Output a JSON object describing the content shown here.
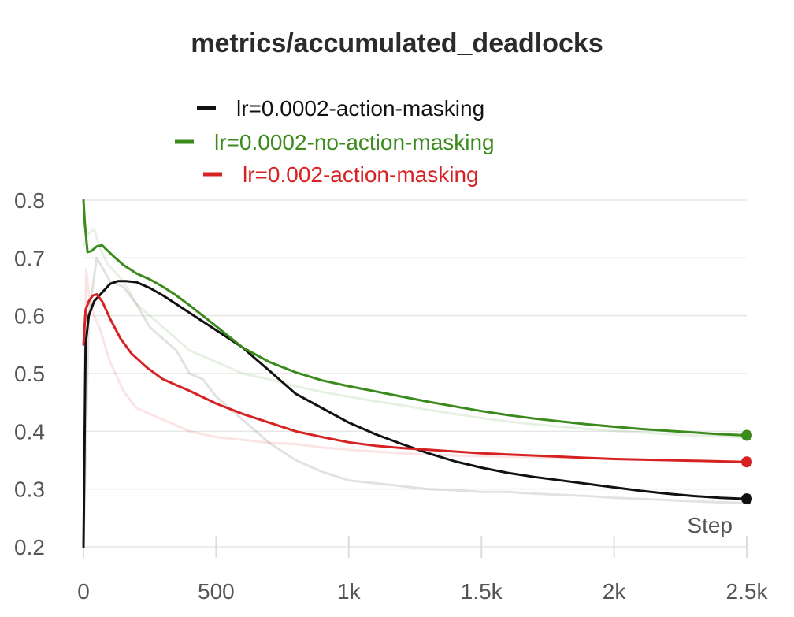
{
  "chart_data": {
    "type": "line",
    "title": "metrics/accumulated_deadlocks",
    "xlabel": "Step",
    "ylabel": "",
    "xlim": [
      0,
      2500
    ],
    "ylim": [
      0.2,
      0.8
    ],
    "x_ticks": [
      0,
      500,
      1000,
      1500,
      2000,
      2500
    ],
    "x_tick_labels": [
      "0",
      "500",
      "1k",
      "1.5k",
      "2k",
      "2.5k"
    ],
    "y_ticks": [
      0.2,
      0.3,
      0.4,
      0.5,
      0.6,
      0.7,
      0.8
    ],
    "y_tick_labels": [
      "0.2",
      "0.3",
      "0.4",
      "0.5",
      "0.6",
      "0.7",
      "0.8"
    ],
    "grid": true,
    "legend_position": "top-center",
    "series": [
      {
        "name": "lr=0.0002-action-masking",
        "color": "#111111",
        "x": [
          0,
          8,
          20,
          40,
          70,
          100,
          130,
          160,
          200,
          250,
          300,
          350,
          400,
          450,
          500,
          550,
          600,
          650,
          700,
          800,
          900,
          1000,
          1100,
          1200,
          1300,
          1400,
          1500,
          1600,
          1700,
          1800,
          1900,
          2000,
          2100,
          2200,
          2300,
          2400,
          2500
        ],
        "values": [
          0.2,
          0.55,
          0.6,
          0.625,
          0.64,
          0.655,
          0.66,
          0.66,
          0.658,
          0.648,
          0.635,
          0.62,
          0.605,
          0.59,
          0.575,
          0.56,
          0.545,
          0.525,
          0.505,
          0.465,
          0.44,
          0.415,
          0.395,
          0.378,
          0.362,
          0.348,
          0.337,
          0.328,
          0.321,
          0.315,
          0.309,
          0.303,
          0.297,
          0.292,
          0.288,
          0.285,
          0.283
        ]
      },
      {
        "name": "lr=0.0002-no-action-masking",
        "color": "#3a8a1c",
        "x": [
          0,
          5,
          15,
          30,
          50,
          70,
          90,
          120,
          150,
          200,
          250,
          300,
          350,
          400,
          450,
          500,
          600,
          700,
          800,
          900,
          1000,
          1100,
          1200,
          1300,
          1400,
          1500,
          1600,
          1700,
          1800,
          1900,
          2000,
          2100,
          2200,
          2300,
          2400,
          2500
        ],
        "values": [
          0.8,
          0.76,
          0.71,
          0.712,
          0.72,
          0.722,
          0.713,
          0.7,
          0.688,
          0.673,
          0.663,
          0.65,
          0.635,
          0.618,
          0.6,
          0.582,
          0.545,
          0.52,
          0.502,
          0.488,
          0.478,
          0.469,
          0.46,
          0.451,
          0.443,
          0.435,
          0.428,
          0.422,
          0.417,
          0.412,
          0.408,
          0.404,
          0.401,
          0.398,
          0.395,
          0.393
        ]
      },
      {
        "name": "lr=0.002-action-masking",
        "color": "#d62222",
        "x": [
          0,
          8,
          20,
          35,
          50,
          70,
          100,
          140,
          180,
          240,
          300,
          350,
          400,
          500,
          600,
          700,
          800,
          900,
          1000,
          1100,
          1200,
          1300,
          1400,
          1500,
          1600,
          1700,
          1800,
          1900,
          2000,
          2100,
          2200,
          2300,
          2400,
          2500
        ],
        "values": [
          0.55,
          0.61,
          0.625,
          0.635,
          0.637,
          0.625,
          0.595,
          0.56,
          0.535,
          0.51,
          0.49,
          0.48,
          0.47,
          0.448,
          0.43,
          0.415,
          0.4,
          0.39,
          0.381,
          0.375,
          0.371,
          0.368,
          0.365,
          0.362,
          0.36,
          0.358,
          0.356,
          0.354,
          0.352,
          0.351,
          0.35,
          0.349,
          0.348,
          0.347
        ]
      }
    ],
    "raw_series": [
      {
        "color": "#111111",
        "x": [
          0,
          20,
          50,
          100,
          150,
          200,
          250,
          300,
          350,
          400,
          450,
          500,
          600,
          700,
          800,
          900,
          1000,
          1100,
          1200,
          1300,
          1400,
          1500,
          1600,
          1700,
          1800,
          1900,
          2000,
          2100,
          2200,
          2300,
          2400,
          2500
        ],
        "values": [
          0.2,
          0.6,
          0.7,
          0.66,
          0.65,
          0.62,
          0.58,
          0.56,
          0.54,
          0.5,
          0.49,
          0.46,
          0.42,
          0.38,
          0.35,
          0.33,
          0.315,
          0.31,
          0.305,
          0.3,
          0.298,
          0.295,
          0.295,
          0.292,
          0.29,
          0.288,
          0.285,
          0.283,
          0.281,
          0.279,
          0.277,
          0.276
        ]
      },
      {
        "color": "#3a8a1c",
        "x": [
          0,
          15,
          40,
          60,
          90,
          150,
          200,
          300,
          400,
          500,
          600,
          700,
          800,
          900,
          1000,
          1100,
          1200,
          1300,
          1400,
          1500,
          1600,
          1700,
          1800,
          1900,
          2000,
          2100,
          2200,
          2300,
          2400,
          2500
        ],
        "values": [
          0.72,
          0.74,
          0.75,
          0.72,
          0.69,
          0.66,
          0.62,
          0.58,
          0.54,
          0.52,
          0.5,
          0.49,
          0.478,
          0.468,
          0.46,
          0.452,
          0.445,
          0.437,
          0.43,
          0.423,
          0.417,
          0.412,
          0.408,
          0.404,
          0.401,
          0.398,
          0.395,
          0.393,
          0.391,
          0.389
        ]
      },
      {
        "color": "#d62222",
        "x": [
          0,
          10,
          25,
          40,
          60,
          100,
          150,
          200,
          250,
          300,
          350,
          400,
          500,
          600,
          700,
          800,
          900,
          1000,
          1100,
          1200,
          1300,
          1400,
          1500,
          1600,
          1700,
          1800,
          1900,
          2000,
          2100,
          2200,
          2300,
          2400,
          2500
        ],
        "values": [
          0.35,
          0.68,
          0.62,
          0.6,
          0.58,
          0.52,
          0.47,
          0.44,
          0.43,
          0.42,
          0.41,
          0.4,
          0.39,
          0.385,
          0.38,
          0.378,
          0.372,
          0.368,
          0.365,
          0.362,
          0.36,
          0.358,
          0.357,
          0.356,
          0.355,
          0.354,
          0.353,
          0.352,
          0.351,
          0.35,
          0.349,
          0.348,
          0.347
        ]
      }
    ]
  }
}
